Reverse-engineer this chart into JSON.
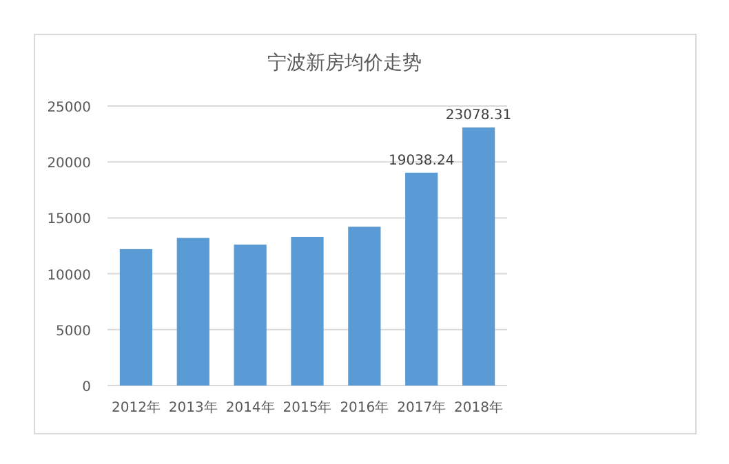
{
  "chart_data": {
    "type": "bar",
    "title": "宁波新房均价走势",
    "categories": [
      "2012年",
      "2013年",
      "2014年",
      "2015年",
      "2016年",
      "2017年",
      "2018年"
    ],
    "values": [
      12200,
      13200,
      12600,
      13300,
      14200,
      19038.24,
      23078.31
    ],
    "value_labels": [
      null,
      null,
      null,
      null,
      null,
      "19038.24",
      "23078.31"
    ],
    "color": "#5b9bd5",
    "ylim": [
      0,
      25000
    ],
    "yticks": [
      0,
      5000,
      10000,
      15000,
      20000,
      25000
    ],
    "grid": "y"
  }
}
